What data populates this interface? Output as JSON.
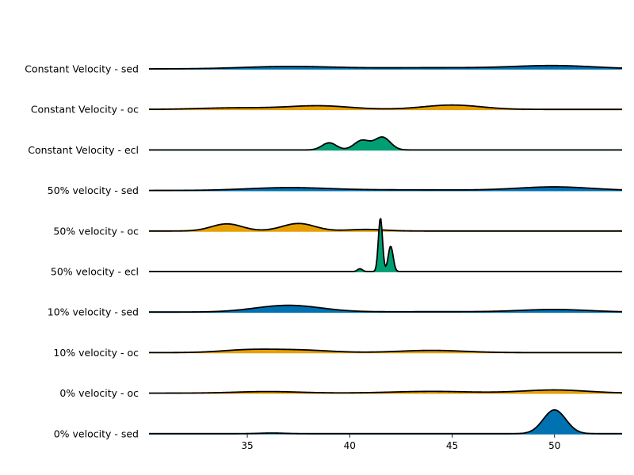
{
  "chart_data": {
    "type": "ridgeline",
    "title": "",
    "xlabel": "",
    "ylabel": "",
    "xlim": [
      30.2,
      53.3
    ],
    "xticks": [
      35,
      40,
      45,
      50
    ],
    "grid": false,
    "legend": "none",
    "colors": {
      "sed": "#0072b2",
      "oc": "#e69f00",
      "ecl": "#009e73"
    },
    "rows": [
      {
        "label": "Constant Velocity - sed",
        "kind": "sed",
        "components": [
          {
            "mu": 37.0,
            "sigma": 2.2,
            "h": 3
          },
          {
            "mu": 44.0,
            "sigma": 3.0,
            "h": 1.5
          },
          {
            "mu": 50.0,
            "sigma": 2.0,
            "h": 4
          }
        ]
      },
      {
        "label": "Constant Velocity - oc",
        "kind": "oc",
        "components": [
          {
            "mu": 34.5,
            "sigma": 1.8,
            "h": 2
          },
          {
            "mu": 38.5,
            "sigma": 1.5,
            "h": 4.5
          },
          {
            "mu": 45.0,
            "sigma": 1.4,
            "h": 5.5
          }
        ]
      },
      {
        "label": "Constant Velocity - ecl",
        "kind": "ecl",
        "components": [
          {
            "mu": 39.0,
            "sigma": 0.35,
            "h": 9
          },
          {
            "mu": 40.6,
            "sigma": 0.38,
            "h": 12
          },
          {
            "mu": 41.6,
            "sigma": 0.38,
            "h": 16
          }
        ]
      },
      {
        "label": "50% velocity - sed",
        "kind": "sed",
        "components": [
          {
            "mu": 37.0,
            "sigma": 2.0,
            "h": 3.5
          },
          {
            "mu": 43.0,
            "sigma": 3.0,
            "h": 0.8
          },
          {
            "mu": 50.0,
            "sigma": 1.8,
            "h": 4.5
          }
        ]
      },
      {
        "label": "50% velocity - oc",
        "kind": "oc",
        "components": [
          {
            "mu": 34.0,
            "sigma": 0.75,
            "h": 9
          },
          {
            "mu": 37.5,
            "sigma": 0.8,
            "h": 9.5
          },
          {
            "mu": 40.8,
            "sigma": 0.9,
            "h": 2
          }
        ]
      },
      {
        "label": "50% velocity - ecl",
        "kind": "ecl",
        "components": [
          {
            "mu": 40.5,
            "sigma": 0.12,
            "h": 3.5
          },
          {
            "mu": 41.5,
            "sigma": 0.1,
            "h": 68
          },
          {
            "mu": 42.0,
            "sigma": 0.12,
            "h": 32
          }
        ]
      },
      {
        "label": "10% velocity - sed",
        "kind": "sed",
        "components": [
          {
            "mu": 37.0,
            "sigma": 1.6,
            "h": 8.5
          },
          {
            "mu": 44.0,
            "sigma": 3.0,
            "h": 0.5
          },
          {
            "mu": 50.0,
            "sigma": 1.7,
            "h": 3.2
          }
        ]
      },
      {
        "label": "10% velocity - oc",
        "kind": "oc",
        "components": [
          {
            "mu": 35.0,
            "sigma": 1.3,
            "h": 3.2
          },
          {
            "mu": 37.5,
            "sigma": 1.5,
            "h": 3.2
          },
          {
            "mu": 44.0,
            "sigma": 1.6,
            "h": 2.8
          }
        ]
      },
      {
        "label": "0% velocity - oc",
        "kind": "oc",
        "components": [
          {
            "mu": 36.0,
            "sigma": 1.6,
            "h": 2
          },
          {
            "mu": 44.0,
            "sigma": 2.0,
            "h": 2.2
          },
          {
            "mu": 50.0,
            "sigma": 1.6,
            "h": 4
          }
        ]
      },
      {
        "label": "0% velocity - sed",
        "kind": "sed",
        "components": [
          {
            "mu": 36.2,
            "sigma": 0.6,
            "h": 0.8
          },
          {
            "mu": 50.0,
            "sigma": 0.55,
            "h": 30
          }
        ]
      }
    ]
  }
}
